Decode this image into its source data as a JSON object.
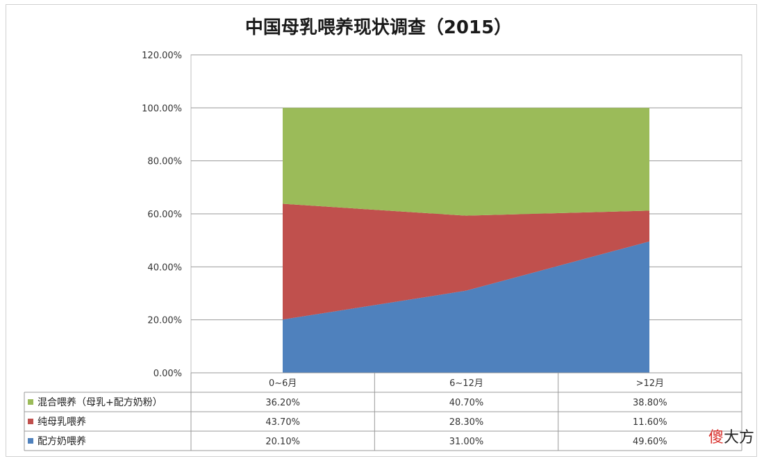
{
  "chart_data": {
    "type": "area",
    "stacked": true,
    "title": "中国母乳喂养现状调查（2015）",
    "categories": [
      "0~6月",
      "6~12月",
      ">12月"
    ],
    "yticks": [
      "0.00%",
      "20.00%",
      "40.00%",
      "60.00%",
      "80.00%",
      "100.00%",
      "120.00%"
    ],
    "ylim": [
      0,
      120
    ],
    "grid": true,
    "legend": "data-table-left",
    "series": [
      {
        "name": "混合喂养（母乳+配方奶粉）",
        "values": [
          36.2,
          40.7,
          38.8
        ],
        "labels": [
          "36.20%",
          "40.70%",
          "38.80%"
        ],
        "color": "#9bbb59"
      },
      {
        "name": "纯母乳喂养",
        "values": [
          43.7,
          28.3,
          11.6
        ],
        "labels": [
          "43.70%",
          "28.30%",
          "11.60%"
        ],
        "color": "#c0504d"
      },
      {
        "name": "配方奶喂养",
        "values": [
          20.1,
          31.0,
          49.6
        ],
        "labels": [
          "20.10%",
          "31.00%",
          "49.60%"
        ],
        "color": "#4f81bd"
      }
    ]
  },
  "watermark": {
    "part1": "傻",
    "part2": "大方"
  }
}
